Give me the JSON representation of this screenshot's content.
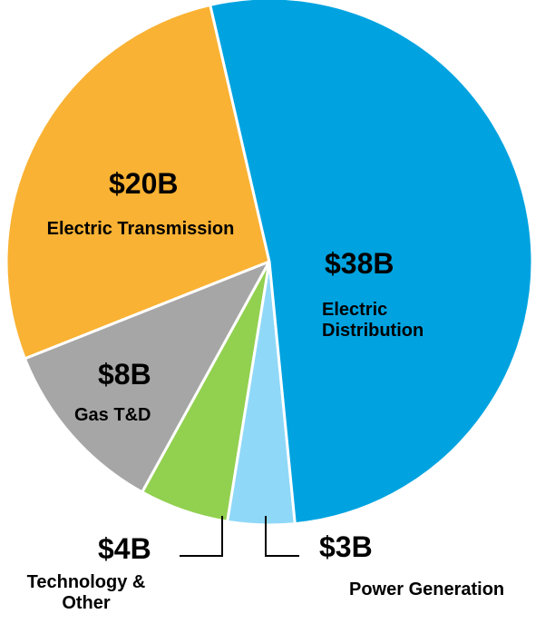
{
  "chart_data": {
    "type": "pie",
    "categories": [
      "Electric Distribution",
      "Power Generation",
      "Technology & Other",
      "Gas T&D",
      "Electric Transmission"
    ],
    "values": [
      38,
      3,
      4,
      8,
      20
    ],
    "value_labels": [
      "$38B",
      "$3B",
      "$4B",
      "$8B",
      "$20B"
    ],
    "colors": [
      "#00a3e0",
      "#8fd8f8",
      "#92d050",
      "#a6a6a6",
      "#f9b233"
    ]
  }
}
